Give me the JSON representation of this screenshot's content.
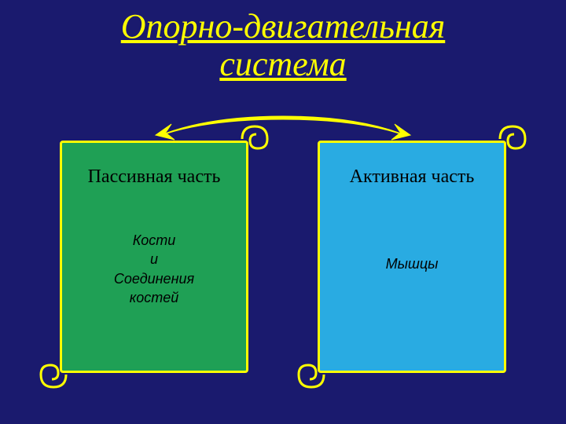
{
  "title": {
    "line1": "Опорно-двигательная",
    "line2": "система",
    "color": "#ffff00",
    "fontsize": 44
  },
  "arrows": {
    "stroke": "#ffff00",
    "fill": "#ffff00",
    "stroke_width": 2
  },
  "left_scroll": {
    "fill": "#1fa055",
    "border": "#ffff00",
    "header": "Пассивная часть",
    "header_fontsize": 24,
    "content_lines": [
      "Кости",
      "и",
      "Соединения",
      "костей"
    ],
    "content_fontsize": 18
  },
  "right_scroll": {
    "fill": "#29abe2",
    "border": "#ffff00",
    "header": "Активная часть",
    "header_fontsize": 24,
    "content_lines": [
      "Мышцы"
    ],
    "content_fontsize": 18
  },
  "background": "#1a1a6e"
}
